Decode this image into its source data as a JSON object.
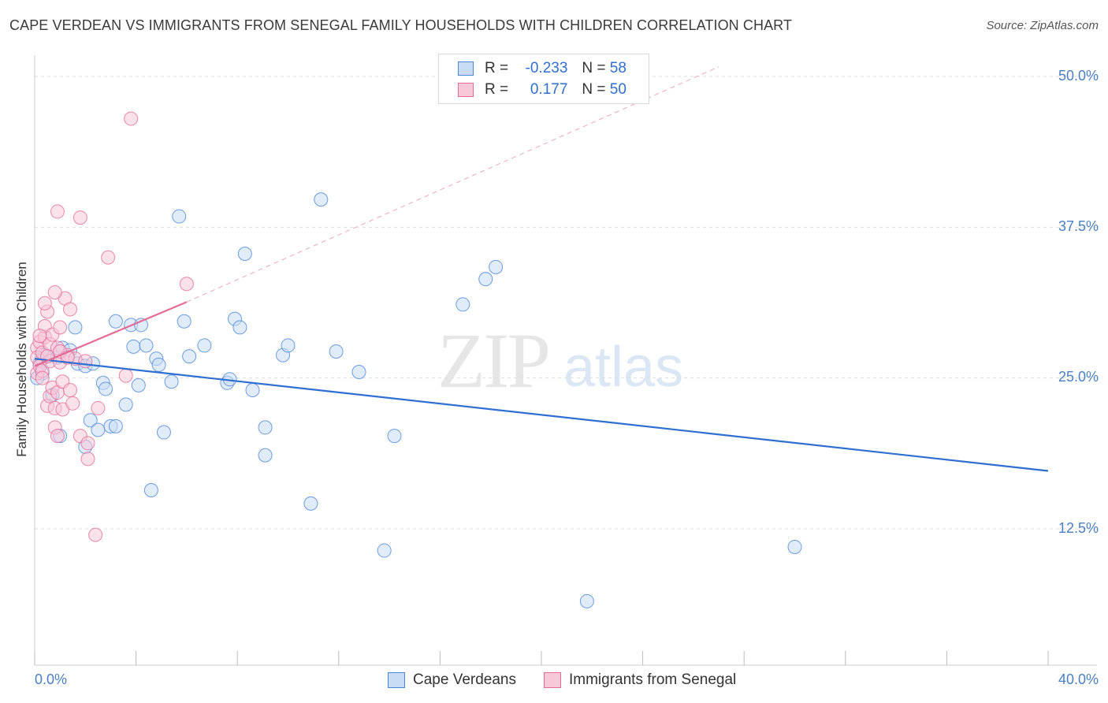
{
  "title": "CAPE VERDEAN VS IMMIGRANTS FROM SENEGAL FAMILY HOUSEHOLDS WITH CHILDREN CORRELATION CHART",
  "source": "Source: ZipAtlas.com",
  "watermark": {
    "zip": "ZIP",
    "atlas": "atlas"
  },
  "colors": {
    "blue": "#4a86d8",
    "blue_fill": "#c9dcf5",
    "pink": "#e46b96",
    "pink_fill": "#f7c9d8",
    "axis_text": "#4a7fc1",
    "grid": "#dddddd"
  },
  "legend": {
    "series": [
      {
        "swatch": "blue",
        "r_label": "R =",
        "r_value": "-0.233",
        "n_label": "N =",
        "n_value": "58"
      },
      {
        "swatch": "pink",
        "r_label": "R =",
        "r_value": "0.177",
        "n_label": "N =",
        "n_value": "50"
      }
    ],
    "bottom": [
      "Cape Verdeans",
      "Immigrants from Senegal"
    ]
  },
  "chart_data": {
    "type": "scatter",
    "title": "CAPE VERDEAN VS IMMIGRANTS FROM SENEGAL FAMILY HOUSEHOLDS WITH CHILDREN CORRELATION CHART",
    "xlabel": "",
    "ylabel": "Family Households with Children",
    "xlim": [
      0,
      40
    ],
    "ylim": [
      0,
      52
    ],
    "x_tick_labels": [
      "0.0%",
      "40.0%"
    ],
    "y_ticks": [
      12.5,
      25.0,
      37.5,
      50.0
    ],
    "y_tick_labels": [
      "12.5%",
      "25.0%",
      "37.5%",
      "50.0%"
    ],
    "series": [
      {
        "name": "Cape Verdeans",
        "color": "blue",
        "points": [
          [
            0.2,
            26.2
          ],
          [
            0.3,
            26.6
          ],
          [
            0.3,
            25.4
          ],
          [
            0.4,
            26.9
          ],
          [
            0.7,
            23.6
          ],
          [
            0.9,
            26.7
          ],
          [
            1.0,
            20.2
          ],
          [
            1.1,
            27.5
          ],
          [
            1.4,
            27.3
          ],
          [
            1.6,
            29.2
          ],
          [
            1.7,
            26.2
          ],
          [
            2.0,
            26.0
          ],
          [
            2.0,
            19.3
          ],
          [
            2.2,
            21.5
          ],
          [
            2.3,
            26.2
          ],
          [
            2.5,
            20.7
          ],
          [
            2.7,
            24.6
          ],
          [
            2.8,
            24.1
          ],
          [
            3.0,
            21.0
          ],
          [
            3.2,
            29.7
          ],
          [
            3.2,
            21.0
          ],
          [
            3.6,
            22.8
          ],
          [
            3.8,
            29.4
          ],
          [
            3.9,
            27.6
          ],
          [
            4.1,
            24.4
          ],
          [
            4.2,
            29.4
          ],
          [
            4.4,
            27.7
          ],
          [
            4.6,
            15.7
          ],
          [
            4.8,
            26.6
          ],
          [
            4.9,
            26.1
          ],
          [
            5.1,
            20.5
          ],
          [
            5.4,
            24.7
          ],
          [
            5.7,
            38.4
          ],
          [
            5.9,
            29.7
          ],
          [
            6.1,
            26.8
          ],
          [
            6.7,
            27.7
          ],
          [
            7.6,
            24.6
          ],
          [
            7.7,
            24.9
          ],
          [
            7.9,
            29.9
          ],
          [
            8.1,
            29.2
          ],
          [
            8.3,
            35.3
          ],
          [
            8.6,
            24.0
          ],
          [
            9.1,
            20.9
          ],
          [
            9.1,
            18.6
          ],
          [
            9.8,
            26.9
          ],
          [
            10.0,
            27.7
          ],
          [
            10.9,
            14.6
          ],
          [
            11.3,
            39.8
          ],
          [
            11.9,
            27.2
          ],
          [
            12.8,
            25.5
          ],
          [
            13.8,
            10.7
          ],
          [
            14.2,
            20.2
          ],
          [
            16.9,
            31.1
          ],
          [
            17.8,
            33.2
          ],
          [
            18.2,
            34.2
          ],
          [
            21.8,
            6.5
          ],
          [
            30.0,
            11.0
          ],
          [
            0.1,
            25.0
          ]
        ]
      },
      {
        "name": "Immigrants from Senegal",
        "color": "pink",
        "points": [
          [
            0.1,
            27.5
          ],
          [
            0.1,
            25.4
          ],
          [
            0.1,
            26.7
          ],
          [
            0.2,
            28.0
          ],
          [
            0.2,
            26.0
          ],
          [
            0.3,
            27.1
          ],
          [
            0.3,
            25.6
          ],
          [
            0.4,
            28.4
          ],
          [
            0.4,
            29.3
          ],
          [
            0.5,
            30.5
          ],
          [
            0.5,
            22.7
          ],
          [
            0.6,
            27.8
          ],
          [
            0.6,
            26.4
          ],
          [
            0.6,
            23.5
          ],
          [
            0.7,
            28.6
          ],
          [
            0.7,
            24.2
          ],
          [
            0.8,
            22.5
          ],
          [
            0.8,
            20.9
          ],
          [
            0.9,
            27.5
          ],
          [
            0.9,
            23.8
          ],
          [
            0.9,
            20.2
          ],
          [
            1.0,
            29.2
          ],
          [
            1.0,
            26.3
          ],
          [
            1.1,
            24.7
          ],
          [
            1.1,
            22.4
          ],
          [
            1.2,
            31.6
          ],
          [
            1.3,
            26.9
          ],
          [
            1.4,
            24.0
          ],
          [
            1.4,
            30.7
          ],
          [
            1.5,
            22.9
          ],
          [
            1.6,
            26.6
          ],
          [
            1.8,
            20.2
          ],
          [
            1.8,
            38.3
          ],
          [
            2.0,
            26.4
          ],
          [
            2.1,
            19.6
          ],
          [
            2.1,
            18.3
          ],
          [
            2.4,
            12.0
          ],
          [
            2.5,
            22.5
          ],
          [
            2.9,
            35.0
          ],
          [
            3.6,
            25.2
          ],
          [
            3.8,
            46.5
          ],
          [
            0.9,
            38.8
          ],
          [
            1.0,
            27.2
          ],
          [
            0.5,
            26.8
          ],
          [
            1.3,
            26.7
          ],
          [
            0.3,
            25.0
          ],
          [
            0.2,
            28.5
          ],
          [
            0.8,
            32.1
          ],
          [
            6.0,
            32.8
          ],
          [
            0.4,
            31.2
          ]
        ]
      }
    ],
    "trend_lines": [
      {
        "series": "Cape Verdeans",
        "x0": 0,
        "y0": 26.6,
        "x1": 40,
        "y1": 17.3,
        "style": "solid"
      },
      {
        "series": "Immigrants from Senegal",
        "x0": 0,
        "y0": 26.0,
        "x1": 6.0,
        "y1": 31.3,
        "style": "solid"
      },
      {
        "series": "Immigrants from Senegal",
        "x0": 6.0,
        "y0": 31.3,
        "x1": 27.0,
        "y1": 50.8,
        "style": "dashed"
      }
    ]
  }
}
